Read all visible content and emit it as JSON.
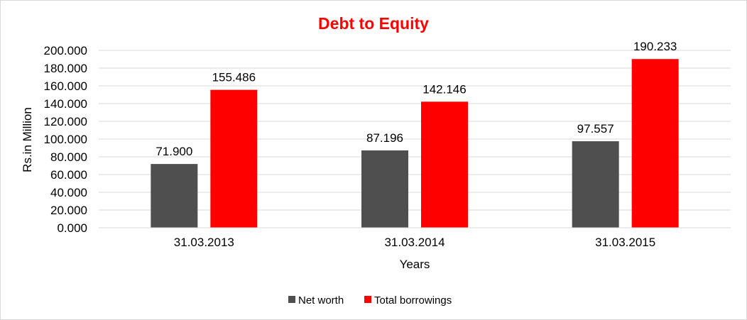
{
  "chart_data": {
    "type": "bar",
    "title": "Debt to Equity",
    "xlabel": "Years",
    "ylabel": "Rs.in Million",
    "categories": [
      "31.03.2013",
      "31.03.2014",
      "31.03.2015"
    ],
    "series": [
      {
        "name": "Net worth",
        "values": [
          71.9,
          87.196,
          97.557
        ],
        "labels": [
          "71.900",
          "87.196",
          "97.557"
        ],
        "color": "#4f4f4f"
      },
      {
        "name": "Total borrowings",
        "values": [
          155.486,
          142.146,
          190.233
        ],
        "labels": [
          "155.486",
          "142.146",
          "190.233"
        ],
        "color": "#ff0000"
      }
    ],
    "ylim": [
      0,
      200
    ],
    "ytick_values": [
      0,
      20,
      40,
      60,
      80,
      100,
      120,
      140,
      160,
      180,
      200
    ],
    "ytick_labels": [
      "0.000",
      "20.000",
      "40.000",
      "60.000",
      "80.000",
      "100.000",
      "120.000",
      "140.000",
      "160.000",
      "180.000",
      "200.000"
    ],
    "grid": true,
    "legend_position": "bottom",
    "title_color": "#ff0000",
    "grid_color": "#d9d9d9"
  }
}
